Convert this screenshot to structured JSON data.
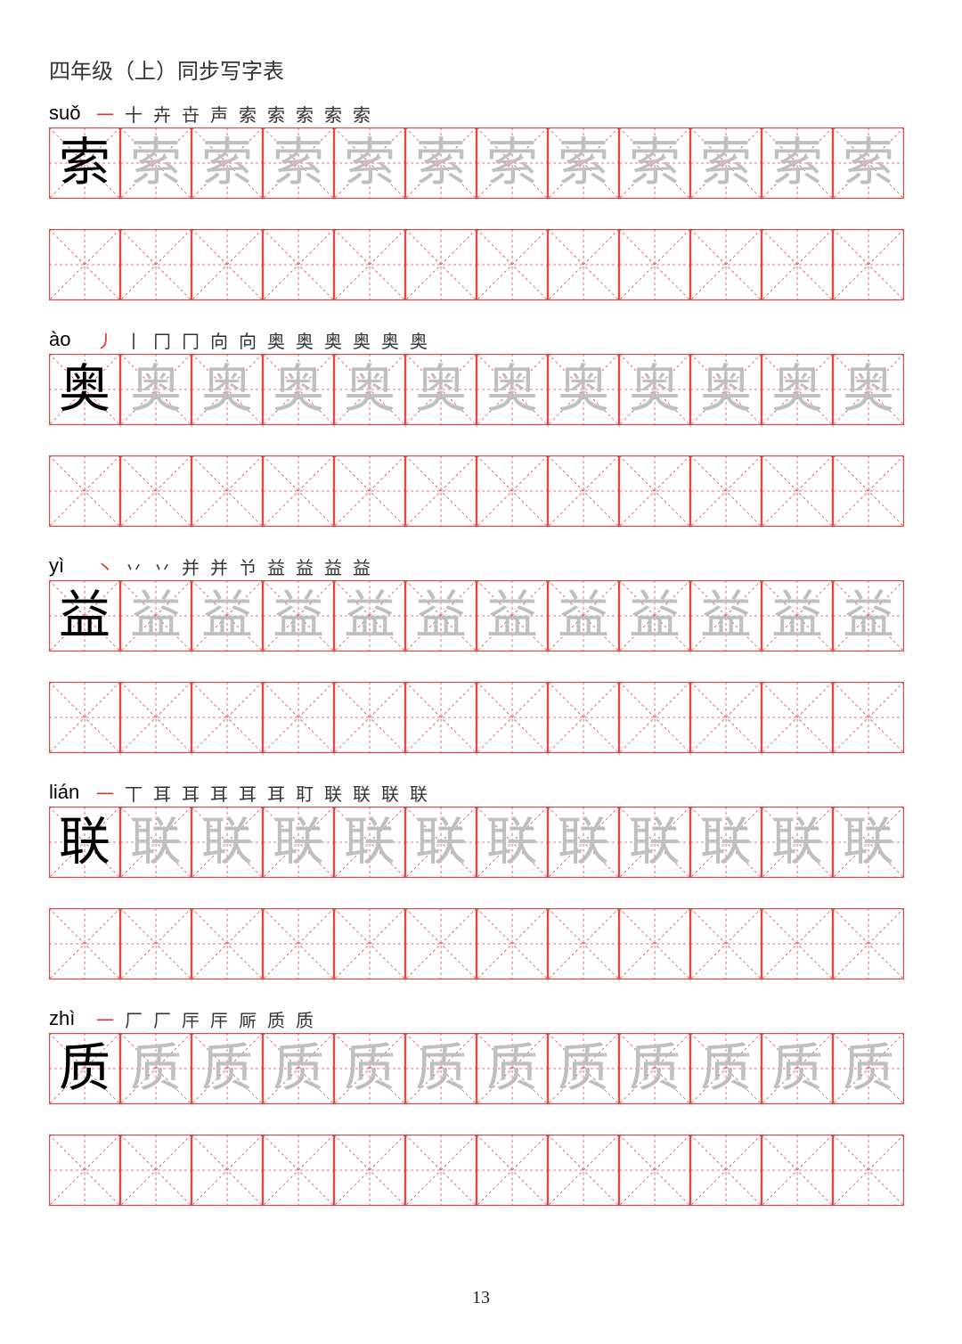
{
  "header": "四年级（上）同步写字表",
  "page_number": "13",
  "cell": {
    "size": 80,
    "grid_color": "#e64545",
    "solid_width": 1.2,
    "dash_width": 0.8,
    "dash_pattern": "3,3"
  },
  "typography": {
    "header_fontsize": 24,
    "pinyin_fontsize": 22,
    "stroke_fontsize": 20,
    "char_fontsize": 58,
    "char_black": "#000000",
    "char_trace": "#bfbfbf",
    "stroke_first_color": "#dd3333",
    "stroke_color": "#333333"
  },
  "characters": [
    {
      "pinyin": "suǒ",
      "char": "索",
      "stroke_count": 10,
      "stroke_steps": [
        "一",
        "十",
        "卉",
        "卋",
        "声",
        "索",
        "索",
        "索",
        "索",
        "索"
      ],
      "trace_row_count": 11,
      "blank_row_cells": 12
    },
    {
      "pinyin": "ào",
      "char": "奥",
      "stroke_count": 12,
      "stroke_steps": [
        "丿",
        "丨",
        "冂",
        "冂",
        "向",
        "向",
        "奥",
        "奥",
        "奥",
        "奥",
        "奥",
        "奥"
      ],
      "trace_row_count": 11,
      "blank_row_cells": 12
    },
    {
      "pinyin": "yì",
      "char": "益",
      "stroke_count": 10,
      "stroke_steps": [
        "丶",
        "丷",
        "丷",
        "并",
        "并",
        "兯",
        "益",
        "益",
        "益",
        "益"
      ],
      "trace_row_count": 11,
      "blank_row_cells": 12
    },
    {
      "pinyin": "lián",
      "char": "联",
      "stroke_count": 12,
      "stroke_steps": [
        "一",
        "丅",
        "耳",
        "耳",
        "耳",
        "耳",
        "耳",
        "耵",
        "联",
        "联",
        "联",
        "联"
      ],
      "trace_row_count": 11,
      "blank_row_cells": 12
    },
    {
      "pinyin": "zhì",
      "char": "质",
      "stroke_count": 8,
      "stroke_steps": [
        "一",
        "厂",
        "厂",
        "厈",
        "厈",
        "厛",
        "质",
        "质"
      ],
      "trace_row_count": 11,
      "blank_row_cells": 12
    }
  ]
}
